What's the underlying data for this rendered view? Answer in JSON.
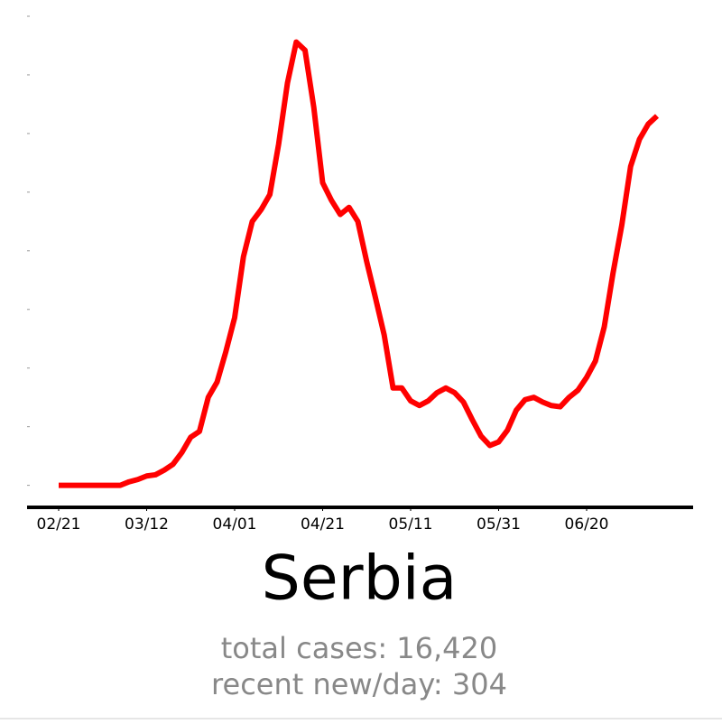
{
  "chart_data": {
    "type": "line",
    "title": "Serbia",
    "annotations": [
      "total cases: 16,420",
      "recent new/day: 304"
    ],
    "x": [
      "02/21",
      "02/23",
      "02/25",
      "02/27",
      "02/29",
      "03/02",
      "03/04",
      "03/06",
      "03/08",
      "03/10",
      "03/12",
      "03/14",
      "03/16",
      "03/18",
      "03/20",
      "03/22",
      "03/24",
      "03/26",
      "03/28",
      "03/30",
      "04/01",
      "04/03",
      "04/05",
      "04/07",
      "04/09",
      "04/11",
      "04/13",
      "04/15",
      "04/17",
      "04/19",
      "04/21",
      "04/23",
      "04/25",
      "04/27",
      "04/29",
      "05/01",
      "05/03",
      "05/05",
      "05/07",
      "05/09",
      "05/11",
      "05/13",
      "05/15",
      "05/17",
      "05/19",
      "05/21",
      "05/23",
      "05/25",
      "05/27",
      "05/29",
      "05/31",
      "06/02",
      "06/04",
      "06/06",
      "06/08",
      "06/10",
      "06/12",
      "06/14",
      "06/16",
      "06/18",
      "06/20",
      "06/22",
      "06/24",
      "06/26",
      "06/28",
      "06/30",
      "07/02",
      "07/04",
      "07/06"
    ],
    "series": [
      {
        "color": "#ff0000",
        "values": [
          0,
          0,
          0,
          0,
          0,
          0,
          0,
          0,
          3,
          5,
          8,
          9,
          13,
          18,
          28,
          41,
          46,
          75,
          88,
          114,
          143,
          195,
          225,
          235,
          248,
          291,
          343,
          378,
          371,
          322,
          258,
          243,
          231,
          237,
          225,
          191,
          160,
          128,
          83,
          83,
          72,
          68,
          72,
          79,
          83,
          79,
          71,
          56,
          42,
          34,
          37,
          47,
          64,
          73,
          75,
          71,
          68,
          67,
          75,
          81,
          92,
          106,
          135,
          181,
          222,
          272,
          295,
          308,
          315
        ]
      }
    ],
    "xticks": [
      "02/21",
      "03/12",
      "04/01",
      "04/21",
      "05/11",
      "05/31",
      "06/20"
    ],
    "ylim": [
      -18,
      410
    ],
    "yticks": [
      0,
      50,
      100,
      150,
      200,
      250,
      300,
      350,
      400
    ]
  }
}
